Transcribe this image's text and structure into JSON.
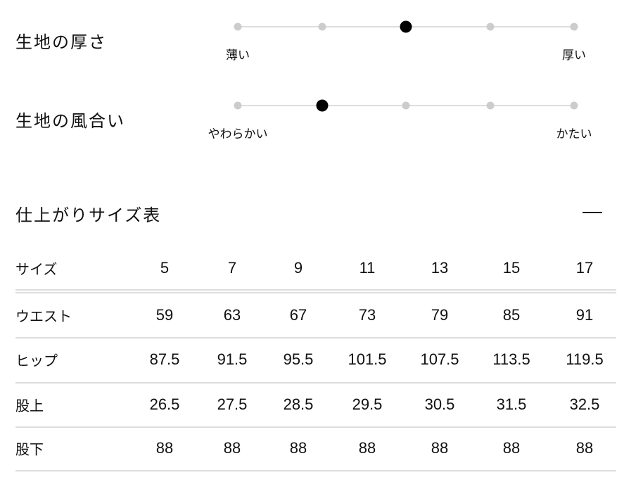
{
  "scales": [
    {
      "title": "生地の厚さ",
      "min_label": "薄い",
      "max_label": "厚い",
      "steps": 5,
      "selected": 3
    },
    {
      "title": "生地の風合い",
      "min_label": "やわらかい",
      "max_label": "かたい",
      "steps": 5,
      "selected": 2
    }
  ],
  "size_table": {
    "title": "仕上がりサイズ表",
    "collapse_icon": "minus-icon",
    "header": {
      "label": "サイズ",
      "values": [
        "5",
        "7",
        "9",
        "11",
        "13",
        "15",
        "17"
      ]
    },
    "rows": [
      {
        "label": "ウエスト",
        "values": [
          "59",
          "63",
          "67",
          "73",
          "79",
          "85",
          "91"
        ]
      },
      {
        "label": "ヒップ",
        "values": [
          "87.5",
          "91.5",
          "95.5",
          "101.5",
          "107.5",
          "113.5",
          "119.5"
        ]
      },
      {
        "label": "股上",
        "values": [
          "26.5",
          "27.5",
          "28.5",
          "29.5",
          "30.5",
          "31.5",
          "32.5"
        ]
      },
      {
        "label": "股下",
        "values": [
          "88",
          "88",
          "88",
          "88",
          "88",
          "88",
          "88"
        ]
      }
    ]
  }
}
